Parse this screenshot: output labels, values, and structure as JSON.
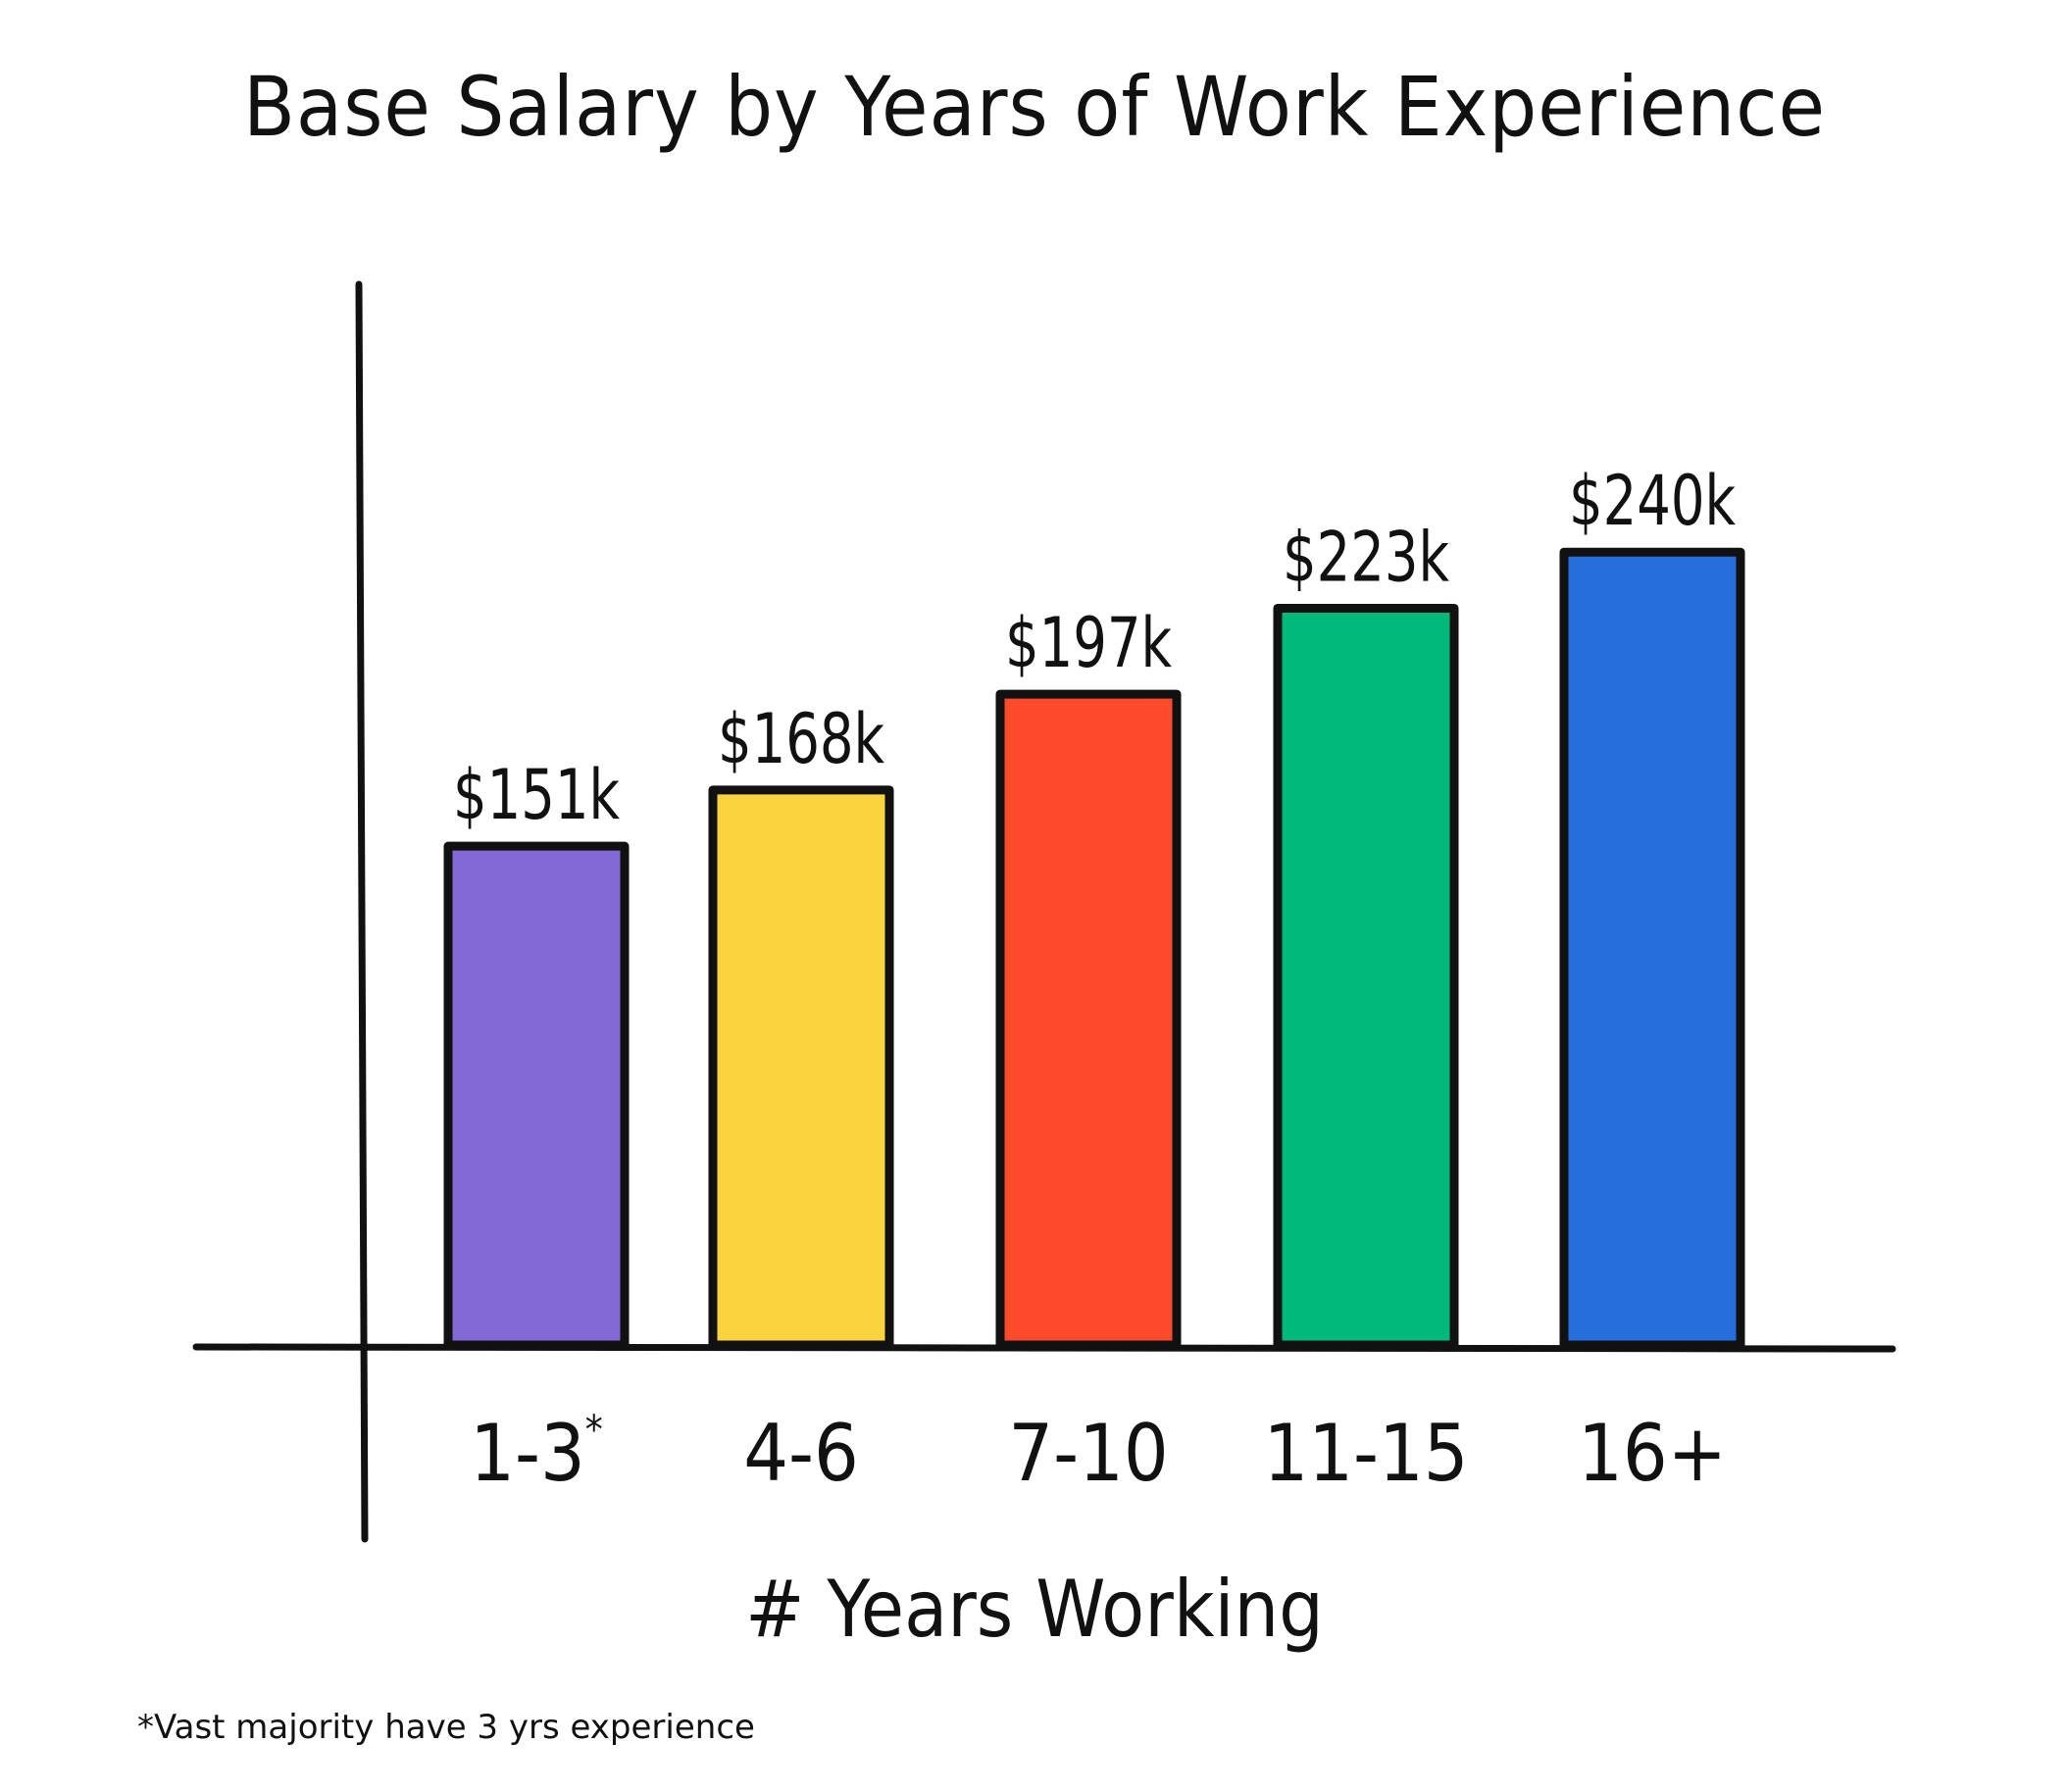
{
  "chart_data": {
    "type": "bar",
    "title": "Base Salary by Years of Work Experience",
    "xlabel": "# Years Working",
    "ylabel": "",
    "categories": [
      "1-3",
      "4-6",
      "7-10",
      "11-15",
      "16+"
    ],
    "category_notes": [
      "*",
      "",
      "",
      "",
      ""
    ],
    "values": [
      151,
      168,
      197,
      223,
      240
    ],
    "value_labels": [
      "$151k",
      "$168k",
      "$197k",
      "$223k",
      "$240k"
    ],
    "colors": [
      "#8369D6",
      "#F9D43F",
      "#FF4A2B",
      "#00B97A",
      "#266DDE"
    ],
    "ylim": [
      0,
      280
    ],
    "grid": false,
    "legend": "none",
    "footnote": "*Vast majority have 3 yrs experience"
  }
}
